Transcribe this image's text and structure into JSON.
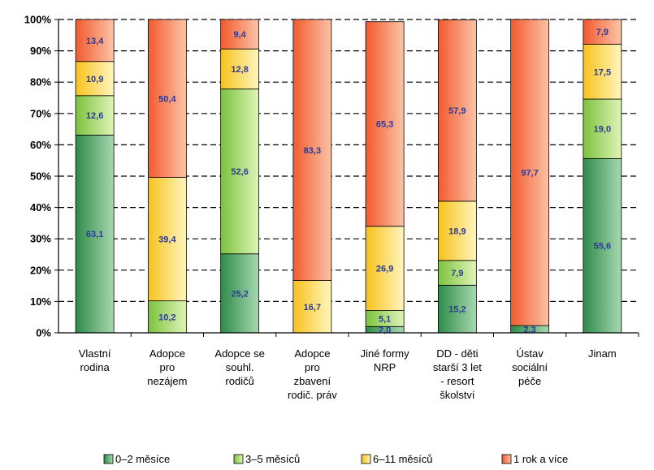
{
  "chart_data": {
    "type": "bar",
    "stacked": true,
    "title": "",
    "xlabel": "",
    "ylabel": "",
    "ylim": [
      0,
      100
    ],
    "yticks": [
      "0%",
      "10%",
      "20%",
      "30%",
      "40%",
      "50%",
      "60%",
      "70%",
      "80%",
      "90%",
      "100%"
    ],
    "grid": true,
    "legend_position": "bottom",
    "categories": [
      [
        "Vlastní",
        "rodina"
      ],
      [
        "Adopce",
        "pro",
        "nezájem"
      ],
      [
        "Adopce se",
        "souhl.",
        "rodičů"
      ],
      [
        "Adopce",
        "pro",
        "zbavení",
        "rodič. práv"
      ],
      [
        "Jiné formy",
        "NRP"
      ],
      [
        "DD - děti",
        "starší 3 let",
        "- resort",
        "školství"
      ],
      [
        "Ústav",
        "sociální",
        "péče"
      ],
      [
        "Jinam"
      ]
    ],
    "series": [
      {
        "name": "0–2 měsíce",
        "color": "#2e8b4a",
        "light": "#a8d8b0",
        "values": [
          63.1,
          0,
          25.2,
          0,
          2.0,
          15.2,
          2.3,
          55.6
        ]
      },
      {
        "name": "3–5 měsíců",
        "color": "#7cc23e",
        "light": "#e0f4b8",
        "values": [
          12.6,
          10.2,
          52.6,
          0,
          5.1,
          7.9,
          0,
          19.0
        ]
      },
      {
        "name": "6–11 měsíců",
        "color": "#f6c21c",
        "light": "#fff6c0",
        "values": [
          10.9,
          39.4,
          12.8,
          16.7,
          26.9,
          18.9,
          0,
          17.5
        ]
      },
      {
        "name": "1 rok a více",
        "color": "#f25a2e",
        "light": "#fbc4a8",
        "values": [
          13.4,
          50.4,
          9.4,
          83.3,
          65.3,
          57.9,
          97.7,
          7.9
        ]
      }
    ],
    "data_labels": [
      [
        "63,1",
        "",
        "25,2",
        "",
        "2,0",
        "15,2",
        "2,3",
        "55,6"
      ],
      [
        "12,6",
        "10,2",
        "52,6",
        "",
        "5,1",
        "7,9",
        "",
        "19,0"
      ],
      [
        "10,9",
        "39,4",
        "12,8",
        "16,7",
        "26,9",
        "18,9",
        "",
        "17,5"
      ],
      [
        "13,4",
        "50,4",
        "9,4",
        "83,3",
        "65,3",
        "57,9",
        "97,7",
        "7,9"
      ]
    ]
  }
}
